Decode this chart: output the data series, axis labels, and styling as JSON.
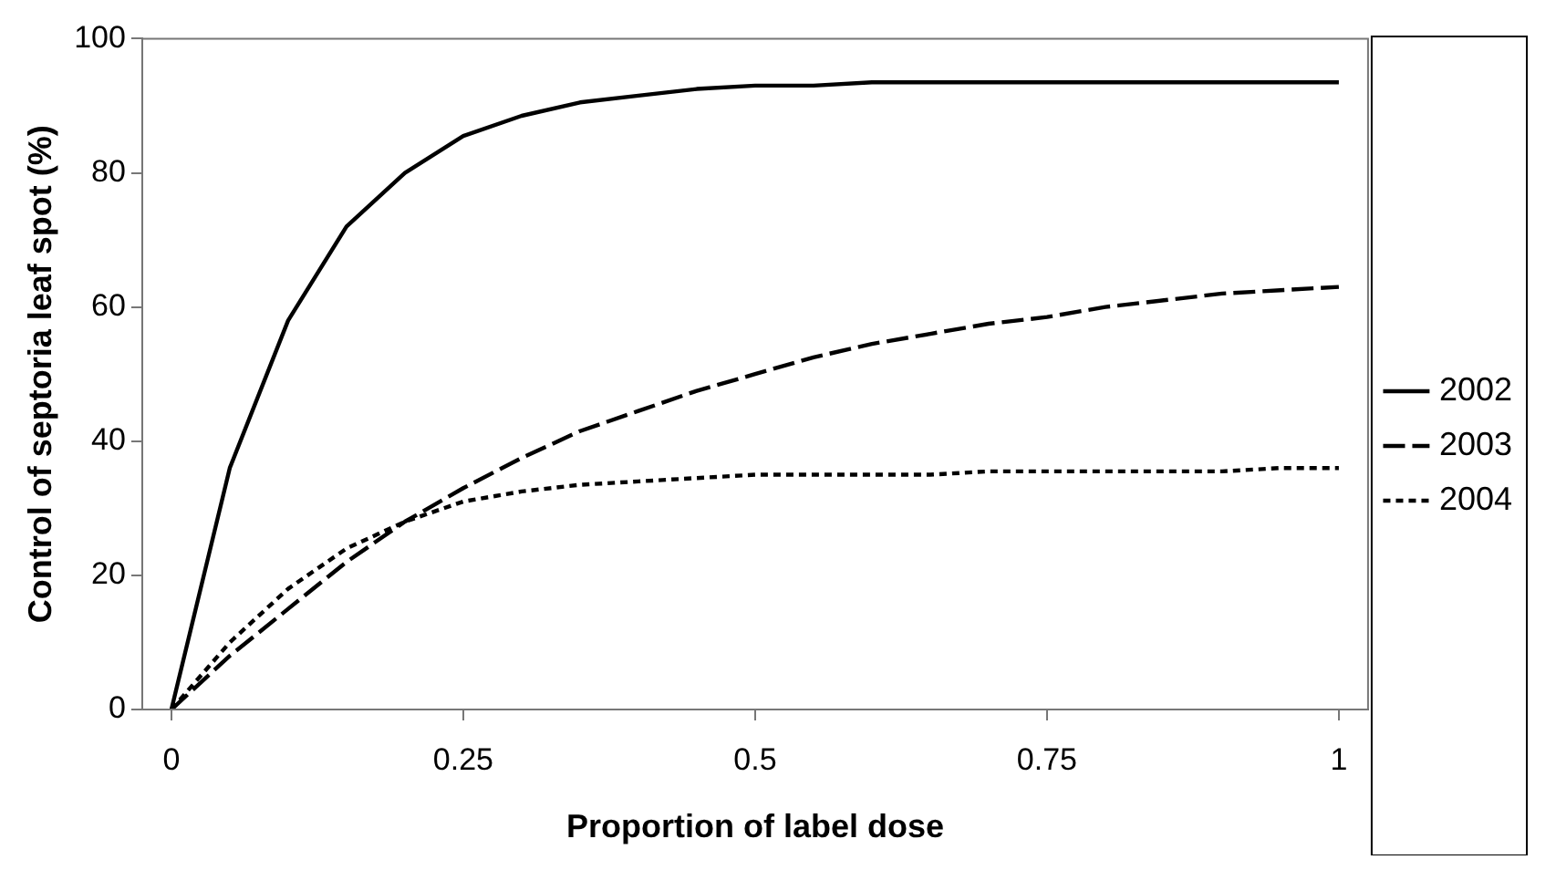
{
  "chart_data": {
    "type": "line",
    "xlabel": "Proportion of label dose",
    "ylabel": "Control of septoria leaf spot (%)",
    "x": [
      0,
      0.05,
      0.1,
      0.15,
      0.2,
      0.25,
      0.3,
      0.35,
      0.4,
      0.45,
      0.5,
      0.55,
      0.6,
      0.65,
      0.7,
      0.75,
      0.8,
      0.85,
      0.9,
      0.95,
      1
    ],
    "series": [
      {
        "name": "2002",
        "color": "#000000",
        "line_style": "solid",
        "values": [
          0,
          36,
          58,
          72,
          80,
          85.5,
          88.5,
          90.5,
          91.5,
          92.5,
          93,
          93,
          93.5,
          93.5,
          93.5,
          93.5,
          93.5,
          93.5,
          93.5,
          93.5,
          93.5
        ]
      },
      {
        "name": "2003",
        "color": "#000000",
        "line_style": "dashed",
        "values": [
          0,
          8,
          15,
          22,
          28,
          33,
          37.5,
          41.5,
          44.5,
          47.5,
          50,
          52.5,
          54.5,
          56,
          57.5,
          58.5,
          60,
          61,
          62,
          62.5,
          63
        ]
      },
      {
        "name": "2004",
        "color": "#000000",
        "line_style": "dotted",
        "values": [
          0,
          10,
          18,
          24,
          28,
          31,
          32.5,
          33.5,
          34,
          34.5,
          35,
          35,
          35,
          35,
          35.5,
          35.5,
          35.5,
          35.5,
          35.5,
          36,
          36
        ]
      }
    ],
    "xlim": [
      -0.025,
      1.025
    ],
    "xticks": [
      0,
      0.25,
      0.5,
      0.75,
      1
    ],
    "ylim": [
      0,
      100
    ],
    "yticks": [
      0,
      20,
      40,
      60,
      80,
      100
    ],
    "grid": false,
    "legend": "right",
    "marker": "none"
  }
}
